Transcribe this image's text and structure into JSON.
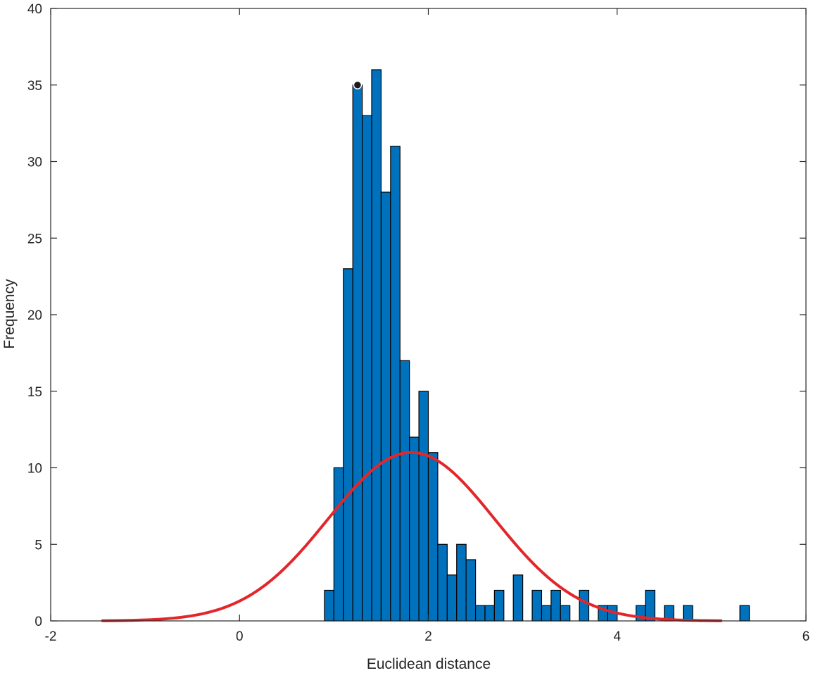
{
  "chart_data": {
    "type": "bar",
    "subtype": "histogram-with-normal-fit",
    "title": "",
    "xlabel": "Euclidean distance",
    "ylabel": "Frequency",
    "xlim": [
      -2,
      6
    ],
    "ylim": [
      0,
      40
    ],
    "xticks": [
      -2,
      0,
      2,
      4,
      6
    ],
    "yticks": [
      0,
      5,
      10,
      15,
      20,
      25,
      30,
      35,
      40
    ],
    "bin_width": 0.1,
    "bins": [
      {
        "x0": 0.9,
        "x1": 1.0,
        "count": 2
      },
      {
        "x0": 1.0,
        "x1": 1.1,
        "count": 10
      },
      {
        "x0": 1.1,
        "x1": 1.2,
        "count": 23
      },
      {
        "x0": 1.2,
        "x1": 1.3,
        "count": 35
      },
      {
        "x0": 1.3,
        "x1": 1.4,
        "count": 33
      },
      {
        "x0": 1.4,
        "x1": 1.5,
        "count": 36
      },
      {
        "x0": 1.5,
        "x1": 1.6,
        "count": 28
      },
      {
        "x0": 1.6,
        "x1": 1.7,
        "count": 31
      },
      {
        "x0": 1.7,
        "x1": 1.8,
        "count": 17
      },
      {
        "x0": 1.8,
        "x1": 1.9,
        "count": 12
      },
      {
        "x0": 1.9,
        "x1": 2.0,
        "count": 15
      },
      {
        "x0": 2.0,
        "x1": 2.1,
        "count": 11
      },
      {
        "x0": 2.1,
        "x1": 2.2,
        "count": 5
      },
      {
        "x0": 2.2,
        "x1": 2.3,
        "count": 3
      },
      {
        "x0": 2.3,
        "x1": 2.4,
        "count": 5
      },
      {
        "x0": 2.4,
        "x1": 2.5,
        "count": 4
      },
      {
        "x0": 2.5,
        "x1": 2.6,
        "count": 1
      },
      {
        "x0": 2.6,
        "x1": 2.7,
        "count": 1
      },
      {
        "x0": 2.7,
        "x1": 2.8,
        "count": 2
      },
      {
        "x0": 2.9,
        "x1": 3.0,
        "count": 3
      },
      {
        "x0": 3.1,
        "x1": 3.2,
        "count": 2
      },
      {
        "x0": 3.2,
        "x1": 3.3,
        "count": 1
      },
      {
        "x0": 3.3,
        "x1": 3.4,
        "count": 2
      },
      {
        "x0": 3.4,
        "x1": 3.5,
        "count": 1
      },
      {
        "x0": 3.6,
        "x1": 3.7,
        "count": 2
      },
      {
        "x0": 3.8,
        "x1": 3.9,
        "count": 1
      },
      {
        "x0": 3.9,
        "x1": 4.0,
        "count": 1
      },
      {
        "x0": 4.2,
        "x1": 4.3,
        "count": 1
      },
      {
        "x0": 4.3,
        "x1": 4.4,
        "count": 2
      },
      {
        "x0": 4.5,
        "x1": 4.6,
        "count": 1
      },
      {
        "x0": 4.7,
        "x1": 4.8,
        "count": 1
      },
      {
        "x0": 5.3,
        "x1": 5.4,
        "count": 1
      }
    ],
    "normal_fit": {
      "mean": 1.82,
      "sigma": 0.88,
      "peak": 11,
      "x_range": [
        -1.45,
        5.1
      ],
      "color": "#e3262a"
    },
    "marker": {
      "x": 1.25,
      "y": 35
    },
    "bar_color": "#0072bd",
    "grid": false,
    "box": true
  }
}
